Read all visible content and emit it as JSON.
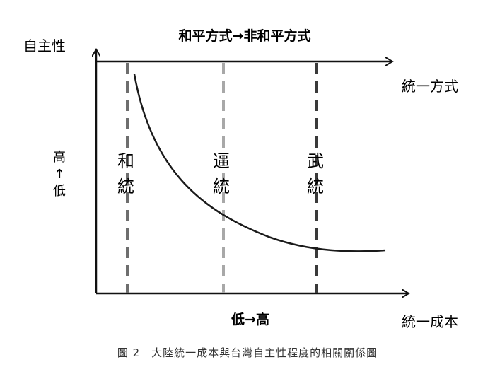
{
  "figure": {
    "top_label": "和平方式→非和平方式",
    "y_axis_title": "自主性",
    "x_axis_title": "統一成本",
    "top_axis_title": "統一方式",
    "y_scale_label": {
      "top": "高",
      "arrow": "↑",
      "bottom": "低"
    },
    "x_scale_label": "低→高",
    "modes": [
      {
        "line1": "和",
        "line2": "統",
        "color": "#6e6e6e"
      },
      {
        "line1": "逼",
        "line2": "統",
        "color": "#a8a8a8"
      },
      {
        "line1": "武",
        "line2": "統",
        "color": "#3a3a3a"
      }
    ],
    "curve_color": "#1a1a1a",
    "axis_color": "#111111",
    "caption": "圖 2　大陸統一成本與台灣自主性程度的相關關係圖"
  }
}
